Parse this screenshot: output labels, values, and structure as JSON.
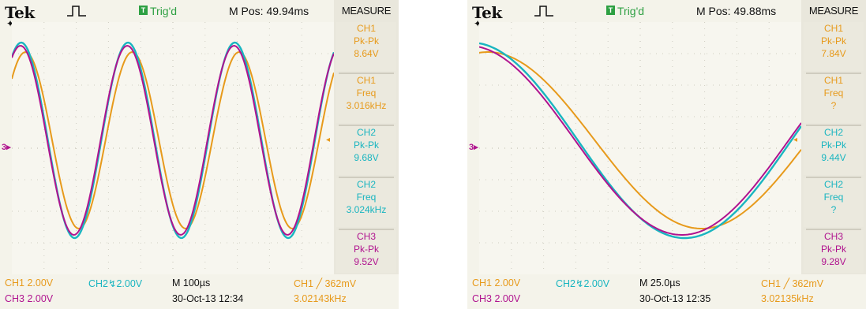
{
  "colors": {
    "ch1": "#e79a1b",
    "ch2": "#19b5c0",
    "ch3": "#b0138f",
    "trig": "#2ea043",
    "grid": "#cfcdc2"
  },
  "icons": {
    "trigger_status": "trig-badge-icon",
    "run": "square-pulse-icon",
    "ground": "ground-marker-icon",
    "trigger_level": "trigger-level-arrow-icon"
  },
  "screens": [
    {
      "brand": "Tek",
      "arrow": "✦",
      "trig_badge": "T",
      "trig_status": "Trig'd",
      "mpos": "M Pos: 49.94ms",
      "ground_marker": "3▸",
      "trig_level_marker": "◂",
      "menu_title": "MEASURE",
      "measurements": [
        {
          "l1": "CH1",
          "l2": "Pk-Pk",
          "l3": "8.64V"
        },
        {
          "l1": "CH1",
          "l2": "Freq",
          "l3": "3.016kHz"
        },
        {
          "l1": "CH2",
          "l2": "Pk-Pk",
          "l3": "9.68V"
        },
        {
          "l1": "CH2",
          "l2": "Freq",
          "l3": "3.024kHz"
        },
        {
          "l1": "CH3",
          "l2": "Pk-Pk",
          "l3": "9.52V"
        }
      ],
      "ch1_scale": "CH1  2.00V",
      "ch2_scale": "CH2↯2.00V",
      "time_div": "M 100µs",
      "trigger": "CH1 ╱ 362mV",
      "ch3_scale": "CH3  2.00V",
      "datetime": "30-Oct-13 12:34",
      "trig_freq": "3.02143kHz"
    },
    {
      "brand": "Tek",
      "arrow": "✦",
      "trig_badge": "T",
      "trig_status": "Trig'd",
      "mpos": "M Pos: 49.88ms",
      "ground_marker": "3▸",
      "trig_level_marker": "◂",
      "menu_title": "MEASURE",
      "measurements": [
        {
          "l1": "CH1",
          "l2": "Pk-Pk",
          "l3": "7.84V"
        },
        {
          "l1": "CH1",
          "l2": "Freq",
          "l3": "?"
        },
        {
          "l1": "CH2",
          "l2": "Pk-Pk",
          "l3": "9.44V"
        },
        {
          "l1": "CH2",
          "l2": "Freq",
          "l3": "?"
        },
        {
          "l1": "CH3",
          "l2": "Pk-Pk",
          "l3": "9.28V"
        }
      ],
      "ch1_scale": "CH1  2.00V",
      "ch2_scale": "CH2↯2.00V",
      "time_div": "M 25.0µs",
      "trigger": "CH1 ╱ 362mV",
      "ch3_scale": "CH3  2.00V",
      "datetime": "30-Oct-13 12:35",
      "trig_freq": "3.02135kHz"
    }
  ]
}
